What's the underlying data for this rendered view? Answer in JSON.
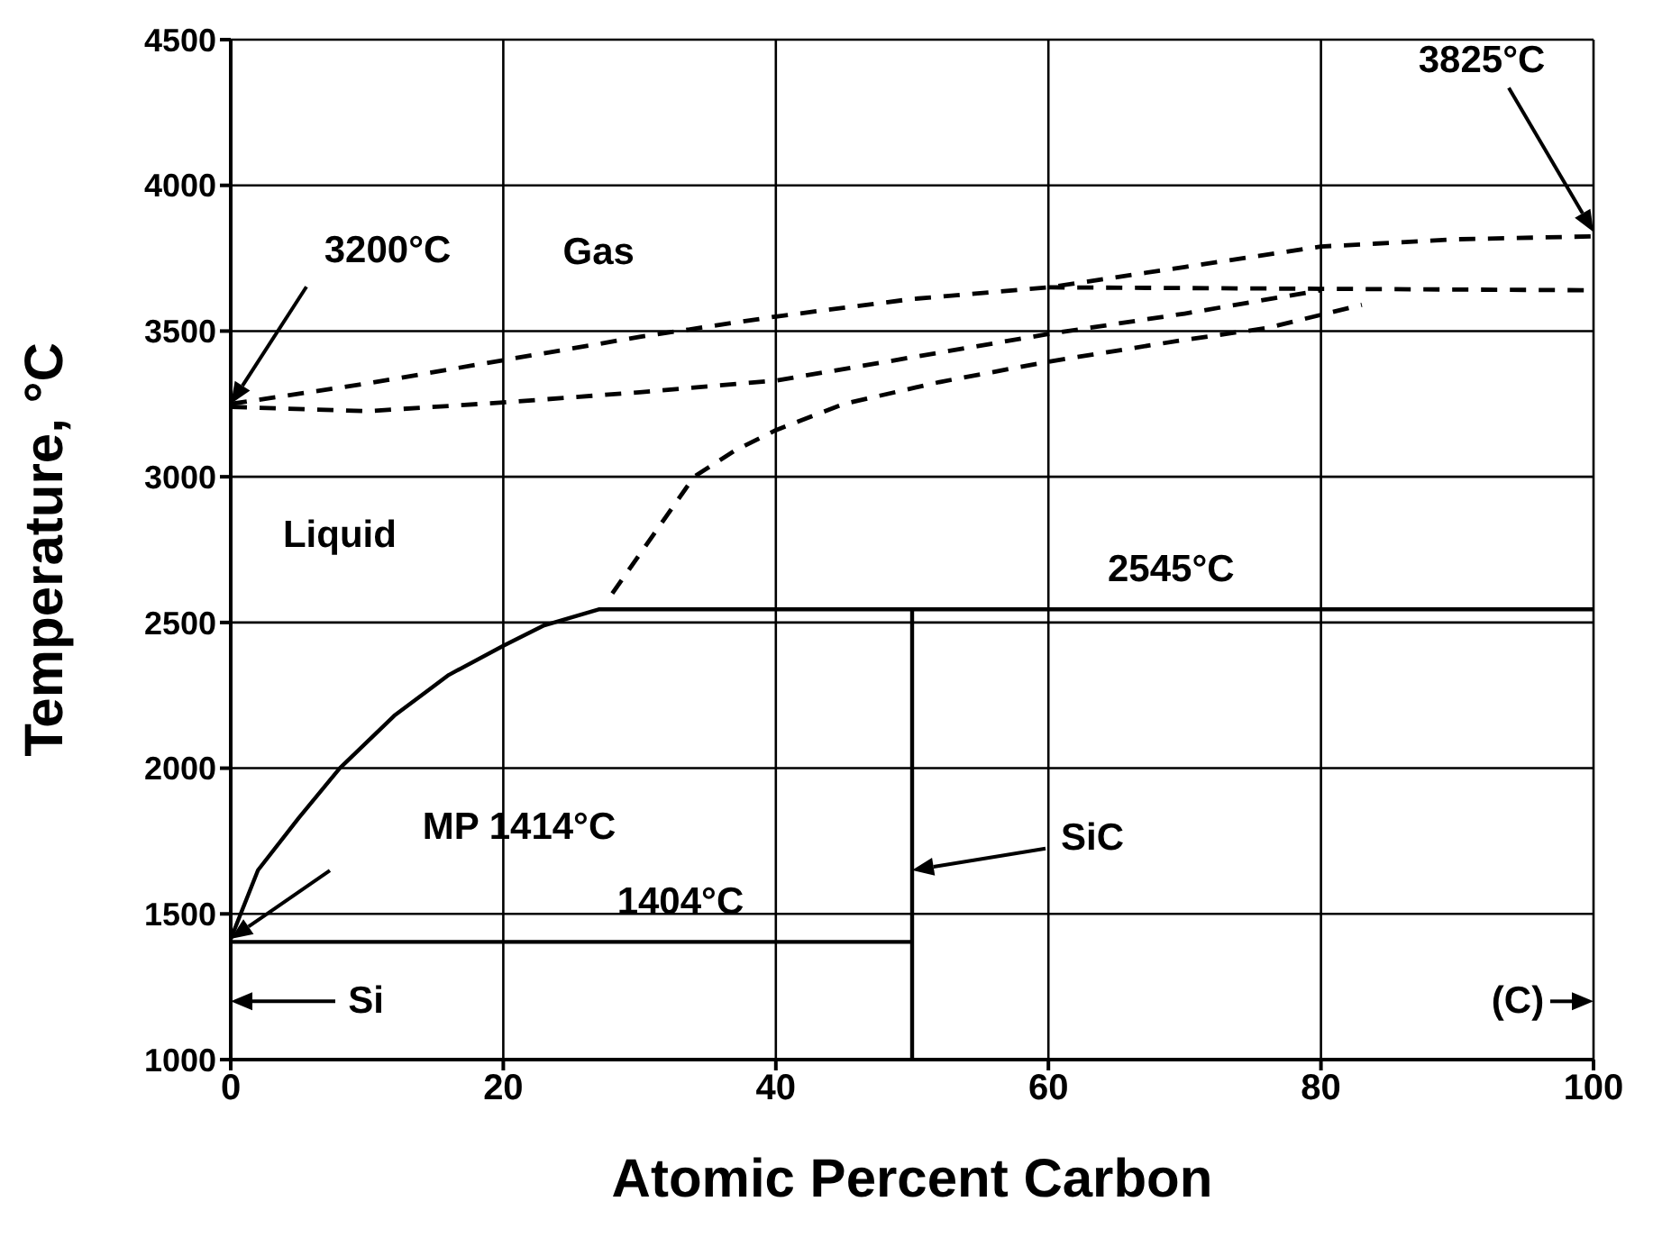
{
  "chart_data": {
    "type": "line",
    "xlabel": "Atomic Percent Carbon",
    "ylabel": "Temperature, °C",
    "xlim": [
      0,
      100
    ],
    "xticks": [
      0,
      20,
      40,
      60,
      80,
      100
    ],
    "ylim": [
      1000,
      4500
    ],
    "yticks": [
      1000,
      1500,
      2000,
      2500,
      3000,
      3500,
      4000,
      4500
    ],
    "grid": true,
    "marker": "none",
    "series": [
      {
        "color": "#000000",
        "line_style": "solid",
        "x": [
          0,
          2,
          5,
          8,
          12,
          16,
          20,
          23,
          27,
          100,
          null,
          50,
          50,
          null,
          50,
          0
        ],
        "values": [
          1414,
          1650,
          1830,
          2000,
          2180,
          2320,
          2420,
          2490,
          2545,
          2545,
          null,
          2545,
          1000,
          null,
          1404,
          1404
        ]
      },
      {
        "color": "#000000",
        "line_style": "dashed",
        "x": [
          0,
          10,
          20,
          30,
          40,
          50,
          60,
          70,
          80,
          90,
          100
        ],
        "values": [
          3250,
          3320,
          3400,
          3480,
          3550,
          3610,
          3650,
          3720,
          3790,
          3815,
          3825
        ]
      },
      {
        "color": "#000000",
        "line_style": "dashed",
        "x": [
          60,
          100
        ],
        "values": [
          3650,
          3640
        ]
      },
      {
        "color": "#000000",
        "line_style": "dashed",
        "x": [
          0,
          10,
          20,
          30,
          40,
          50,
          60,
          70,
          80
        ],
        "values": [
          3240,
          3225,
          3255,
          3290,
          3330,
          3410,
          3490,
          3560,
          3640
        ]
      },
      {
        "color": "#000000",
        "line_style": "dashed",
        "x": [
          28,
          31,
          34,
          37,
          40,
          45,
          52,
          60,
          70,
          76,
          83
        ],
        "values": [
          2600,
          2800,
          3000,
          3090,
          3160,
          3250,
          3325,
          3395,
          3470,
          3510,
          3590
        ]
      }
    ],
    "annotations": [
      "3200°C",
      "Gas",
      "3825°C",
      "Liquid",
      {
        "text": "2545°C",
        "x": 69,
        "y": 2545
      },
      "MP 1414°C",
      {
        "text": "1404°C",
        "x": 33,
        "y": 1404
      },
      "SiC",
      "Si",
      "(C)"
    ]
  }
}
